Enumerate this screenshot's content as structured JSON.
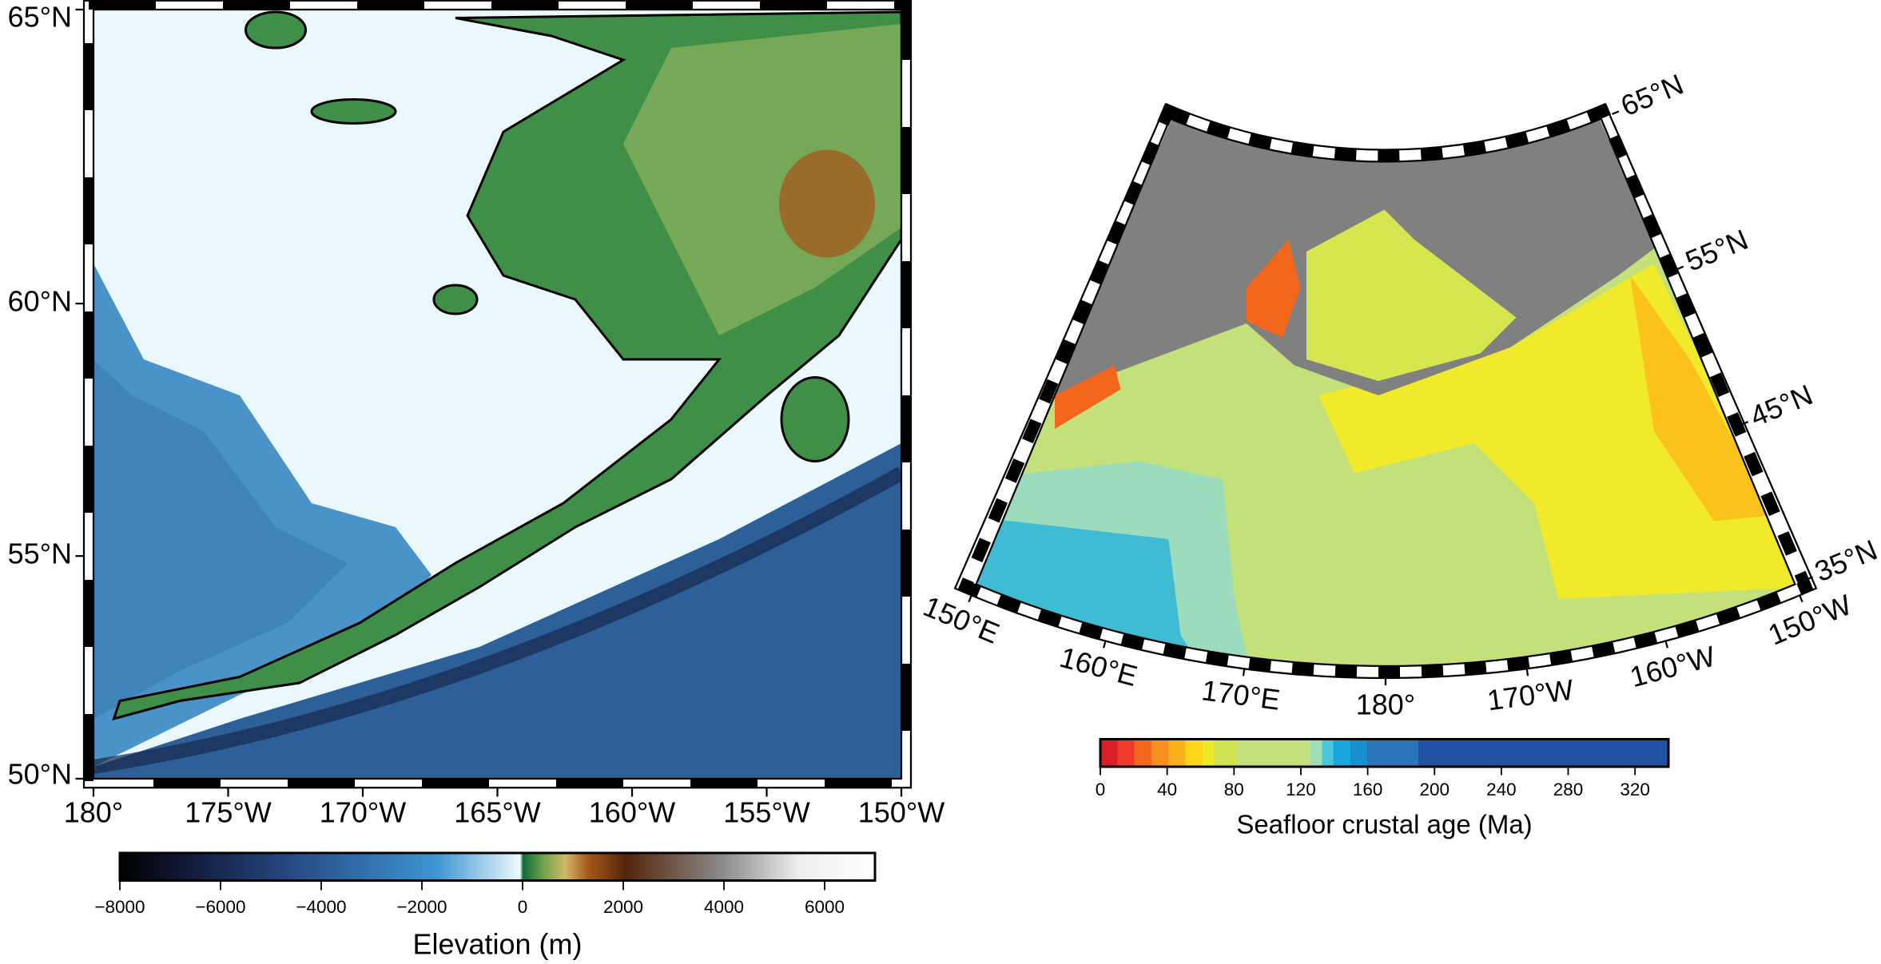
{
  "left_map": {
    "lonlim": [
      -180,
      -150
    ],
    "latlim": [
      50,
      65
    ],
    "lon_ticks": [
      {
        "value": -180,
        "label": "180°"
      },
      {
        "value": -175,
        "label": "175°W"
      },
      {
        "value": -170,
        "label": "170°W"
      },
      {
        "value": -165,
        "label": "165°W"
      },
      {
        "value": -160,
        "label": "160°W"
      },
      {
        "value": -155,
        "label": "155°W"
      },
      {
        "value": -150,
        "label": "150°W"
      }
    ],
    "lat_ticks": [
      {
        "value": 50,
        "label": "50°N"
      },
      {
        "value": 55,
        "label": "55°N"
      },
      {
        "value": 60,
        "label": "60°N"
      },
      {
        "value": 65,
        "label": "65°N"
      }
    ],
    "colorbar": {
      "label": "Elevation (m)",
      "range": [
        -8000,
        7000
      ],
      "ticks": [
        {
          "value": -8000,
          "label": "−8000"
        },
        {
          "value": -6000,
          "label": "−6000"
        },
        {
          "value": -4000,
          "label": "−4000"
        },
        {
          "value": -2000,
          "label": "−2000"
        },
        0,
        2000,
        4000,
        6000
      ]
    }
  },
  "right_map": {
    "lonlim": [
      150,
      210
    ],
    "latlim": [
      35,
      65
    ],
    "lon_ticks": [
      {
        "value": 150,
        "label": "150°E"
      },
      {
        "value": 160,
        "label": "160°E"
      },
      {
        "value": 170,
        "label": "170°E"
      },
      {
        "value": 180,
        "label": "180°"
      },
      {
        "value": 190,
        "label": "170°W"
      },
      {
        "value": 200,
        "label": "160°W"
      },
      {
        "value": 210,
        "label": "150°W"
      }
    ],
    "lat_ticks": [
      {
        "value": 35,
        "label": "35°N"
      },
      {
        "value": 45,
        "label": "45°N"
      },
      {
        "value": 55,
        "label": "55°N"
      },
      {
        "value": 65,
        "label": "65°N"
      }
    ],
    "colorbar": {
      "label": "Seafloor crustal age (Ma)",
      "range": [
        0,
        340
      ],
      "ticks": [
        0,
        40,
        80,
        120,
        160,
        200,
        240,
        280,
        320
      ]
    }
  }
}
